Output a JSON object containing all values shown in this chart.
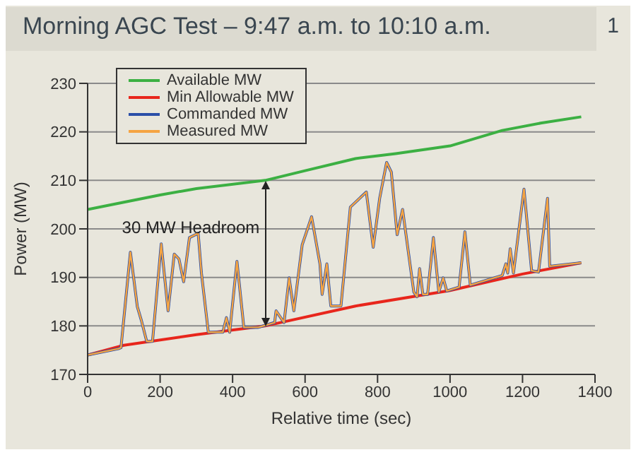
{
  "chart_data": {
    "type": "line",
    "title": "Morning AGC Test – 9:47 a.m. to 10:10 a.m.",
    "xlabel": "Relative time (sec)",
    "ylabel": "Power (MW)",
    "annotations": [
      "30 MW Headroom",
      "1"
    ],
    "xlim": [
      0,
      1400
    ],
    "xticks": [
      0,
      200,
      400,
      600,
      800,
      1000,
      1200,
      1400
    ],
    "ylim": [
      170,
      230
    ],
    "yticks": [
      170,
      180,
      190,
      200,
      210,
      220,
      230
    ],
    "grid": "y",
    "legend": "top left",
    "marker": "none",
    "line_style": "solid",
    "series": [
      {
        "name": "Available MW",
        "color": "#3cb043",
        "x": [
          0,
          100,
          200,
          300,
          490,
          600,
          739,
          850,
          1000,
          1144,
          1250,
          1362
        ],
        "values": [
          204,
          205.5,
          207,
          208.3,
          210,
          212,
          214.5,
          215.5,
          217.1,
          220.3,
          221.8,
          223.1
        ]
      },
      {
        "name": "Min Allowable MW",
        "color": "#e8261c",
        "x": [
          0,
          100,
          300,
          490,
          739,
          1000,
          1200,
          1362
        ],
        "values": [
          174,
          176,
          178.2,
          180,
          184.1,
          187.3,
          190.7,
          193
        ]
      },
      {
        "name": "Commanded MW",
        "color": "#2a4fa8",
        "x": [
          0,
          85,
          92,
          118,
          137,
          148,
          163,
          179,
          203,
          222,
          239,
          252,
          265,
          281,
          305,
          314,
          333,
          373,
          383,
          392,
          412,
          431,
          471,
          516,
          520,
          542,
          556,
          569,
          592,
          618,
          641,
          647,
          660,
          671,
          699,
          725,
          769,
          788,
          806,
          825,
          838,
          854,
          869,
          900,
          909,
          916,
          925,
          938,
          954,
          969,
          981,
          991,
          1025,
          1041,
          1056,
          1144,
          1154,
          1159,
          1166,
          1175,
          1204,
          1225,
          1244,
          1269,
          1275,
          1362
        ],
        "values": [
          174,
          175.3,
          175.5,
          195.2,
          184,
          181.2,
          176.8,
          176.8,
          196.9,
          183.1,
          194.8,
          193.8,
          189.1,
          198.2,
          199.1,
          190.9,
          178.7,
          178.7,
          181.7,
          178.7,
          193.3,
          179.7,
          179.7,
          180.7,
          183.1,
          180.7,
          189.9,
          183.1,
          196.7,
          202.5,
          192.8,
          186.5,
          192.8,
          184.1,
          184.1,
          204.5,
          207.6,
          196.2,
          206.4,
          213.7,
          211.7,
          198.8,
          204,
          187,
          186,
          191.8,
          186.5,
          186.5,
          198.2,
          187,
          189.9,
          187.2,
          188,
          199.4,
          188.4,
          190.4,
          192.8,
          190.9,
          195.9,
          190.9,
          208.2,
          191.4,
          191.1,
          206.3,
          192.3,
          193
        ]
      },
      {
        "name": "Measured MW",
        "color": "#f5a442",
        "x": [
          0,
          85,
          92,
          118,
          137,
          148,
          163,
          179,
          203,
          222,
          239,
          252,
          265,
          281,
          305,
          314,
          333,
          373,
          383,
          392,
          412,
          431,
          471,
          516,
          520,
          542,
          556,
          569,
          592,
          618,
          641,
          647,
          660,
          671,
          699,
          725,
          769,
          788,
          806,
          825,
          838,
          854,
          869,
          900,
          909,
          916,
          925,
          938,
          954,
          969,
          981,
          991,
          1025,
          1041,
          1056,
          1144,
          1154,
          1159,
          1166,
          1175,
          1204,
          1225,
          1244,
          1269,
          1275,
          1362
        ],
        "values": [
          174,
          175.3,
          175.5,
          195.2,
          184,
          181.2,
          176.8,
          176.8,
          196.9,
          183.1,
          194.8,
          193.8,
          189.1,
          198.2,
          199.1,
          190.9,
          178.7,
          178.7,
          181.7,
          178.7,
          193.3,
          179.7,
          179.7,
          180.7,
          183.1,
          180.7,
          189.9,
          183.1,
          196.7,
          202.5,
          192.8,
          186.5,
          192.8,
          184.1,
          184.1,
          204.5,
          207.6,
          196.2,
          206.4,
          213.7,
          211.7,
          198.8,
          204,
          187,
          186,
          191.8,
          186.5,
          186.5,
          198.2,
          187,
          189.9,
          187.2,
          188,
          199.4,
          188.4,
          190.4,
          192.8,
          190.9,
          195.9,
          190.9,
          208.2,
          191.4,
          191.1,
          206.3,
          192.3,
          193
        ]
      }
    ]
  }
}
